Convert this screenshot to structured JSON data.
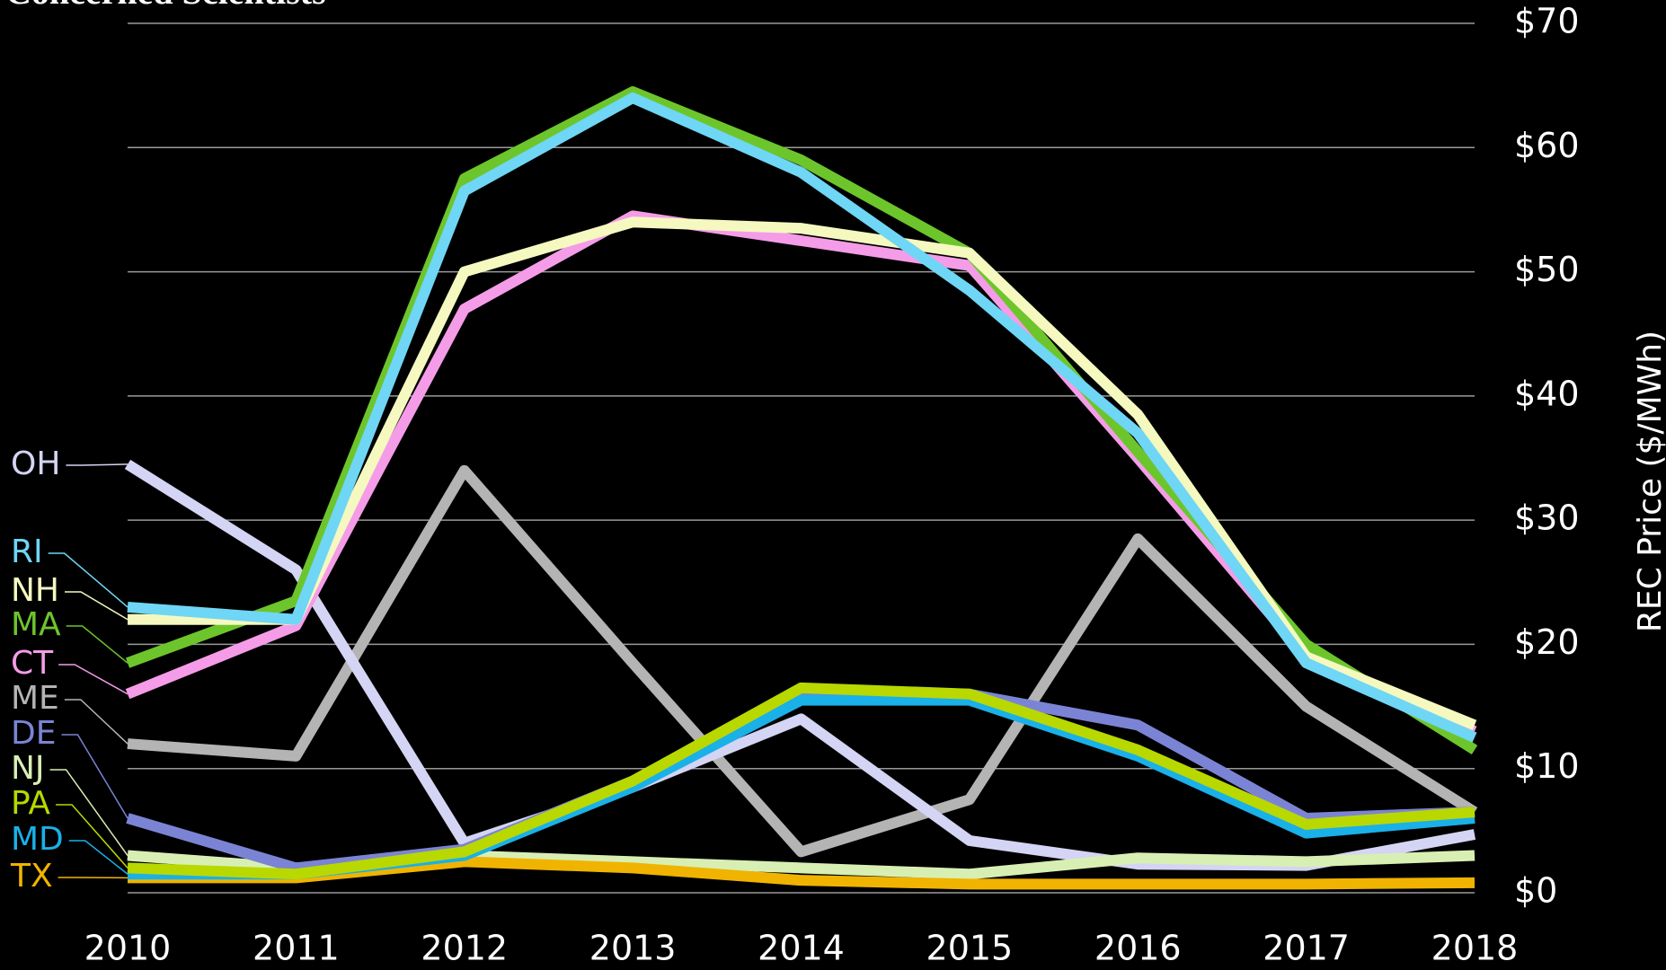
{
  "chart_data": {
    "type": "line",
    "title": "Concerned Scientists",
    "y_label": "REC Price ($/MWh)",
    "x": [
      2010,
      2011,
      2012,
      2013,
      2014,
      2015,
      2016,
      2017,
      2018
    ],
    "xlim": [
      2010,
      2018
    ],
    "xticks": [
      2010,
      2011,
      2012,
      2013,
      2014,
      2015,
      2016,
      2017,
      2018
    ],
    "ylim": [
      0,
      70
    ],
    "yticks": [
      {
        "value": 0,
        "label": "$0"
      },
      {
        "value": 10,
        "label": "$10"
      },
      {
        "value": 20,
        "label": "$20"
      },
      {
        "value": 30,
        "label": "$30"
      },
      {
        "value": 40,
        "label": "$40"
      },
      {
        "value": 50,
        "label": "$50"
      },
      {
        "value": 60,
        "label": "$60"
      },
      {
        "value": 70,
        "label": "$70"
      }
    ],
    "grid": true,
    "series": [
      {
        "name": "ME",
        "color": "#b4b4b4",
        "values": [
          12,
          11,
          34,
          18.5,
          3.3,
          7.5,
          28.5,
          15,
          6.5
        ]
      },
      {
        "name": "OH",
        "color": "#d4d4f4",
        "values": [
          34.5,
          26,
          4,
          8.5,
          14,
          4.2,
          2.3,
          2.2,
          4.7
        ]
      },
      {
        "name": "NJ",
        "color": "#d8efb4",
        "values": [
          3,
          2,
          3,
          2.5,
          2,
          1.5,
          2.8,
          2.5,
          3
        ]
      },
      {
        "name": "TX",
        "color": "#f0b400",
        "values": [
          1.2,
          1.2,
          2.5,
          2,
          1,
          0.7,
          0.7,
          0.7,
          0.8
        ]
      },
      {
        "name": "DE",
        "color": "#7b84d4",
        "values": [
          6,
          2,
          3.5,
          9,
          16,
          16,
          13.5,
          6,
          6.5
        ]
      },
      {
        "name": "MD",
        "color": "#1ab0e8",
        "values": [
          1.5,
          1.5,
          3,
          8.5,
          15.5,
          15.5,
          11,
          4.8,
          6
        ]
      },
      {
        "name": "PA",
        "color": "#b8d800",
        "values": [
          2,
          1.5,
          3.3,
          9,
          16.5,
          16,
          11.5,
          5.5,
          6.5
        ]
      },
      {
        "name": "CT",
        "color": "#f59ce8",
        "values": [
          16,
          21.5,
          47,
          54.5,
          52.5,
          50.5,
          35,
          19,
          13
        ]
      },
      {
        "name": "MA",
        "color": "#6dc52c",
        "values": [
          18.5,
          23.5,
          57.5,
          64.5,
          59,
          51.5,
          35.5,
          20,
          11.5
        ]
      },
      {
        "name": "NH",
        "color": "#f5f9c0",
        "values": [
          22,
          22,
          50,
          54,
          53.5,
          51.5,
          38.5,
          19,
          13.5
        ]
      },
      {
        "name": "RI",
        "color": "#6fd6f5",
        "values": [
          23,
          22,
          56.5,
          64,
          58,
          48.5,
          37,
          18.5,
          12.5
        ]
      }
    ]
  }
}
